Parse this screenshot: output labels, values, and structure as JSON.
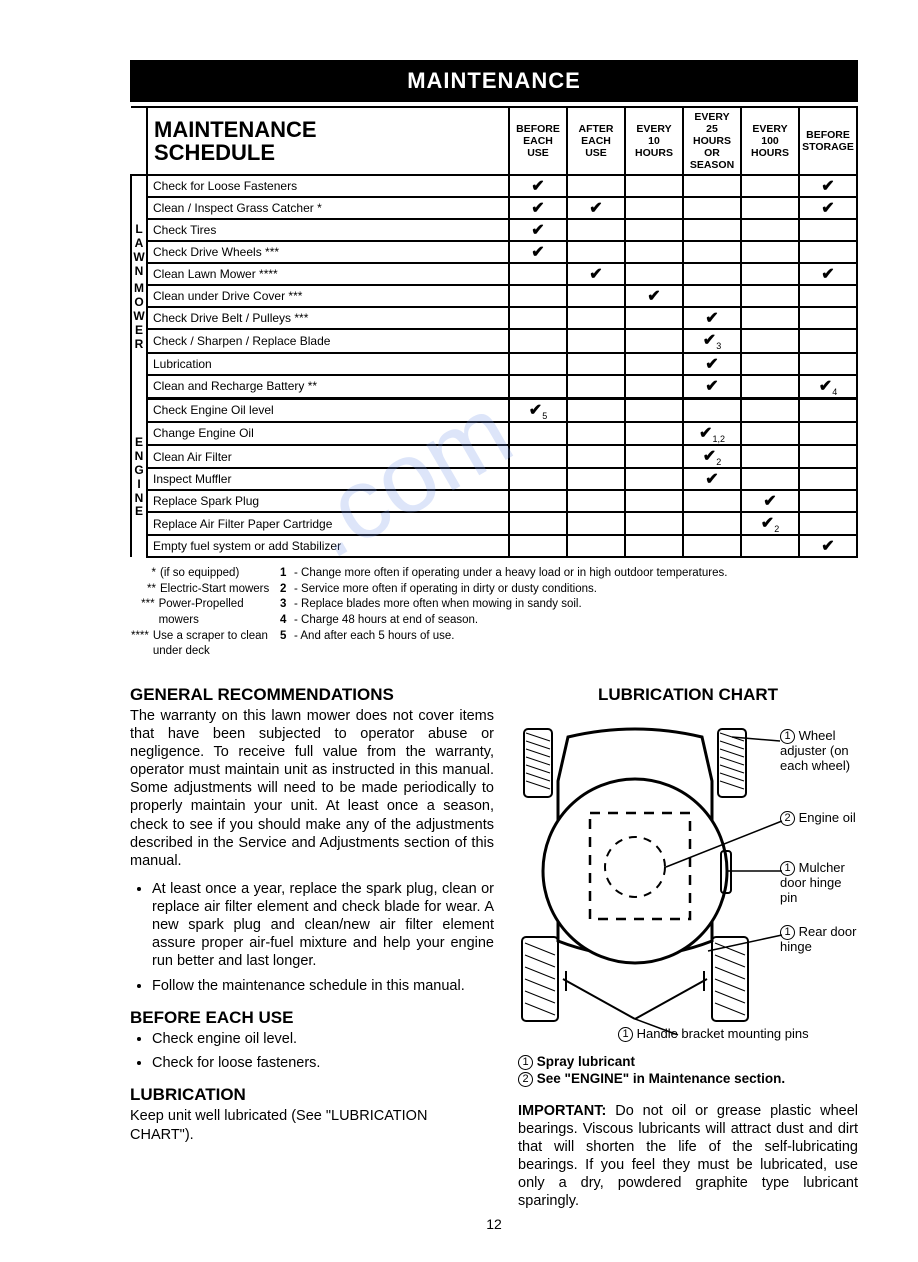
{
  "title_bar": "MAINTENANCE",
  "schedule": {
    "corner_line1": "MAINTENANCE",
    "corner_line2": "SCHEDULE",
    "columns": [
      "BEFORE\nEACH\nUSE",
      "AFTER\nEACH\nUSE",
      "EVERY\n10\nHOURS",
      "EVERY\n25 HOURS\nOR SEASON",
      "EVERY\n100\nHOURS",
      "BEFORE\nSTORAGE"
    ],
    "group1_label": "LAWN MOWER",
    "group2_label": "ENGINE",
    "rows1": [
      {
        "task": "Check for Loose Fasteners",
        "marks": [
          "✔",
          "",
          "",
          "",
          "",
          "✔"
        ]
      },
      {
        "task": "Clean / Inspect Grass Catcher *",
        "marks": [
          "✔",
          "✔",
          "",
          "",
          "",
          "✔"
        ]
      },
      {
        "task": "Check Tires",
        "marks": [
          "✔",
          "",
          "",
          "",
          "",
          ""
        ]
      },
      {
        "task": "Check Drive Wheels ***",
        "marks": [
          "✔",
          "",
          "",
          "",
          "",
          ""
        ]
      },
      {
        "task": "Clean Lawn Mower ****",
        "marks": [
          "",
          "✔",
          "",
          "",
          "",
          "✔"
        ]
      },
      {
        "task": "Clean under Drive Cover ***",
        "marks": [
          "",
          "",
          "✔",
          "",
          "",
          ""
        ]
      },
      {
        "task": "Check Drive Belt / Pulleys ***",
        "marks": [
          "",
          "",
          "",
          "✔",
          "",
          ""
        ]
      },
      {
        "task": "Check / Sharpen / Replace Blade",
        "marks": [
          "",
          "",
          "",
          "✔3",
          "",
          ""
        ]
      },
      {
        "task": "Lubrication",
        "marks": [
          "",
          "",
          "",
          "✔",
          "",
          ""
        ]
      },
      {
        "task": "Clean and Recharge Battery **",
        "marks": [
          "",
          "",
          "",
          "✔",
          "",
          "✔4"
        ]
      }
    ],
    "rows2": [
      {
        "task": "Check Engine Oil level",
        "marks": [
          "✔5",
          "",
          "",
          "",
          "",
          ""
        ]
      },
      {
        "task": "Change Engine Oil",
        "marks": [
          "",
          "",
          "",
          "✔1,2",
          "",
          ""
        ]
      },
      {
        "task": "Clean Air Filter",
        "marks": [
          "",
          "",
          "",
          "✔2",
          "",
          ""
        ]
      },
      {
        "task": "Inspect Muffler",
        "marks": [
          "",
          "",
          "",
          "✔",
          "",
          ""
        ]
      },
      {
        "task": "Replace Spark Plug",
        "marks": [
          "",
          "",
          "",
          "",
          "✔",
          ""
        ]
      },
      {
        "task": "Replace Air Filter Paper Cartridge",
        "marks": [
          "",
          "",
          "",
          "",
          "✔2",
          ""
        ]
      },
      {
        "task": "Empty fuel system or add Stabilizer",
        "marks": [
          "",
          "",
          "",
          "",
          "",
          "✔"
        ]
      }
    ]
  },
  "footnotes_left": [
    {
      "sym": "*",
      "text": "(if so equipped)"
    },
    {
      "sym": "**",
      "text": "Electric-Start mowers"
    },
    {
      "sym": "***",
      "text": "Power-Propelled mowers"
    },
    {
      "sym": "****",
      "text": "Use a scraper to clean under deck"
    }
  ],
  "footnotes_right": [
    {
      "num": "1",
      "text": "- Change more often if operating under a heavy load or in high outdoor temperatures."
    },
    {
      "num": "2",
      "text": "- Service more often if operating in dirty or dusty conditions."
    },
    {
      "num": "3",
      "text": "- Replace blades more often when mowing in sandy soil."
    },
    {
      "num": "4",
      "text": "- Charge 48 hours at end of season."
    },
    {
      "num": "5",
      "text": "- And after each 5 hours of use."
    }
  ],
  "general": {
    "heading": "GENERAL RECOMMENDATIONS",
    "para1": "The warranty on this lawn mower does not cover items that have been subjected to operator abuse or negligence.  To receive full value from the warranty, operator must maintain unit as instructed in this manual. Some adjustments will need to be made periodically to properly maintain your unit. At least once a season, check to see if you should make any of the adjustments described in the Service and Adjustments section of this manual.",
    "bullets": [
      "At least once a year, replace the spark plug, clean or replace air filter element and check blade for wear.  A new spark plug and clean/new air filter element assure proper air-fuel mixture and help your engine run better and last longer.",
      "Follow the maintenance schedule in this manual."
    ]
  },
  "before_use": {
    "heading": "BEFORE EACH USE",
    "bullets": [
      "Check engine oil level.",
      "Check for loose fasteners."
    ]
  },
  "lubrication": {
    "heading": "LUBRICATION",
    "text": "Keep unit well lubricated (See \"LUBRICATION CHART\")."
  },
  "chart": {
    "heading": "LUBRICATION CHART",
    "callouts": {
      "wheel_adj": "Wheel adjuster (on each wheel)",
      "engine_oil": "Engine oil",
      "mulcher": "Mulcher door hinge pin",
      "rear_door": "Rear door hinge",
      "handle": "Handle bracket mounting pins"
    },
    "legend1": "Spray lubricant",
    "legend2": "See \"ENGINE\" in Maintenance section."
  },
  "important": {
    "label": "IMPORTANT:",
    "text": "  Do not oil or grease plastic wheel bearings.   Viscous lubricants will attract dust and dirt that will shorten the life of the self-lubricating bearings.  If you feel they must be lubricated, use only a dry, powdered graphite type lubricant sparingly."
  },
  "page_number": "12",
  "watermark": ".com"
}
